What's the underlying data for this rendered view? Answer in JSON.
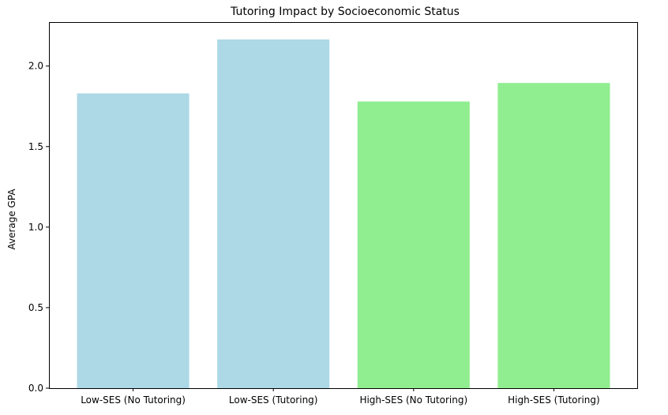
{
  "chart_data": {
    "type": "bar",
    "title": "Tutoring Impact by Socioeconomic Status",
    "xlabel": "",
    "ylabel": "Average GPA",
    "categories": [
      "Low-SES (No Tutoring)",
      "Low-SES (Tutoring)",
      "High-SES (No Tutoring)",
      "High-SES (Tutoring)"
    ],
    "values": [
      1.83,
      2.165,
      1.78,
      1.895
    ],
    "bar_colors": [
      "#add8e6",
      "#add8e6",
      "#90ee90",
      "#90ee90"
    ],
    "yticks": [
      0.0,
      0.5,
      1.0,
      1.5,
      2.0
    ],
    "ytick_labels": [
      "0.0",
      "0.5",
      "1.0",
      "1.5",
      "2.0"
    ],
    "ylim": [
      0,
      2.273
    ],
    "grid": false,
    "legend": "none"
  }
}
